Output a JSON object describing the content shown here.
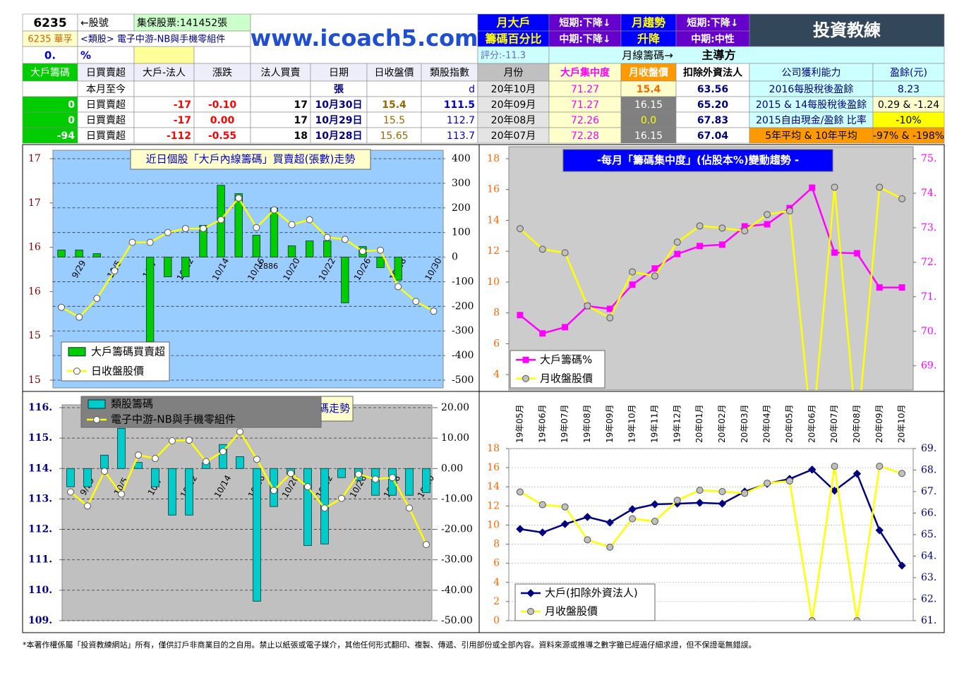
{
  "header": {
    "stock_code": "6235",
    "code_label": "←股號",
    "shares": "集保股票:141452張",
    "name": "6235 華孚",
    "sector": "<類股> 電子中游-NB與手機零組件",
    "pct": "0.",
    "pct_unit": "%",
    "site": "www.icoach5.com",
    "monthly_major": "月大戶",
    "chip_pct": "籌碼百分比",
    "short1": "短期:下降↓",
    "mid1": "中期:下降↓",
    "trend": "月趨勢",
    "updown": "升降",
    "short2": "短期:下降↓",
    "mid2": "中期:中性",
    "logo": "投資教練",
    "score": "評分:-11.3",
    "monthly_chip": "月線籌碼→",
    "leader": "主導方"
  },
  "table": {
    "columns": [
      "大戶籌碼",
      "日買賣超",
      "大戶-法人",
      "漲跌",
      "法人買賣",
      "日期",
      "日收盤價",
      "類股指數",
      "月份",
      "大戶集中度",
      "月收盤價",
      "扣除外資法人",
      "公司獲利能力",
      "盈餘(元)"
    ],
    "rows": [
      [
        null,
        "本月至今",
        null,
        null,
        null,
        "張",
        null,
        "d",
        "20年10月",
        "71.27",
        "15.4",
        "63.56",
        "2016每股稅後盈餘",
        "8.23"
      ],
      [
        "0",
        "日買賣超",
        "-17",
        "-0.10",
        "17",
        "10月30日",
        "15.4",
        "111.5",
        "20年09月",
        "71.27",
        "16.15",
        "65.20",
        "2015 & 14每股稅後盈餘",
        "0.29 & -1.24"
      ],
      [
        "0",
        "日買賣超",
        "-17",
        "0.00",
        "17",
        "10月29日",
        "15.5",
        "112.7",
        "20年08月",
        "72.26",
        "0.0",
        "67.83",
        "2015自由現金/盈餘 比率",
        "-10%"
      ],
      [
        "-94",
        "日買賣超",
        "-112",
        "-0.55",
        "18",
        "10月28日",
        "15.65",
        "113.7",
        "20年07月",
        "72.28",
        "16.15",
        "67.04",
        "5年平均 & 10年平均",
        "-97% & -198%"
      ]
    ]
  },
  "chart_data": [
    {
      "type": "combo",
      "title": "近日個股「大戶內線籌碼」買賣超(張數)走勢",
      "annotation": "2886",
      "categories": [
        null,
        "9/29",
        null,
        "10/5",
        null,
        "10/7",
        null,
        "10/12",
        null,
        "10/14",
        null,
        "10/16",
        null,
        "10/20",
        null,
        "10/22",
        null,
        "10/26",
        null,
        "10/28",
        null,
        "10/30"
      ],
      "ylim": [
        14.7,
        16.95
      ],
      "yticks": [
        {
          "value": 14.7,
          "label": "15"
        },
        {
          "value": 15.15,
          "label": "15"
        },
        {
          "value": 15.6,
          "label": "16"
        },
        {
          "value": 16.05,
          "label": "16"
        },
        {
          "value": 16.5,
          "label": "17"
        },
        {
          "value": 16.95,
          "label": "17"
        }
      ],
      "y2lim": [
        -500,
        400
      ],
      "y2ticks": [
        -500,
        -400,
        -300,
        -200,
        -100,
        0,
        100,
        200,
        300,
        400
      ],
      "grid": "y2",
      "series": [
        {
          "name": "大戶籌碼買賣超",
          "type": "bar",
          "axis": "y2",
          "color": "#00cc00",
          "values": [
            29,
            29,
            14,
            0,
            0,
            -344,
            -80,
            -80,
            129,
            292,
            258,
            89,
            200,
            46,
            66,
            66,
            -186,
            43,
            -43,
            -94,
            0,
            0
          ]
        },
        {
          "name": "日收盤股價",
          "type": "line",
          "color": "#ffff00",
          "marker": "circle",
          "marker_color": "#ffffff",
          "values": [
            15.44,
            15.34,
            15.53,
            15.81,
            16.1,
            16.1,
            16.2,
            16.24,
            16.24,
            16.33,
            16.55,
            16.25,
            16.43,
            16.28,
            16.33,
            16.15,
            16.13,
            16.01,
            16.02,
            15.65,
            15.5,
            15.4
          ]
        }
      ]
    },
    {
      "type": "line",
      "title": "-每月「籌碼集中度」(佔股本%)變動趨勢 -",
      "ylim": [
        3,
        18
      ],
      "yticks": [
        4,
        6,
        8,
        10,
        12,
        14,
        16,
        18
      ],
      "y2lim": [
        68.3,
        75
      ],
      "y2ticks": [
        {
          "value": 69,
          "label": "69."
        },
        {
          "value": 70,
          "label": "70."
        },
        {
          "value": 71,
          "label": "71."
        },
        {
          "value": 72,
          "label": "72."
        },
        {
          "value": 73,
          "label": "73."
        },
        {
          "value": 74,
          "label": "74."
        },
        {
          "value": 75,
          "label": "75."
        }
      ],
      "series": [
        {
          "name": "大戶籌碼%",
          "axis": "y2",
          "color": "#ff00ff",
          "marker": "square",
          "marker_color": "#ff00ff",
          "values": [
            70.47,
            69.94,
            70.12,
            70.73,
            70.65,
            71.35,
            71.82,
            72.24,
            72.47,
            72.51,
            73.04,
            73.1,
            73.57,
            74.16,
            72.28,
            72.26,
            71.27,
            71.27
          ]
        },
        {
          "name": "月收盤股價",
          "color": "#ffff00",
          "marker": "circle",
          "marker_color": "#c0c0c0",
          "values": [
            13.46,
            12.13,
            11.9,
            8.46,
            7.68,
            10.66,
            10.39,
            12.59,
            13.64,
            13.5,
            13.32,
            14.38,
            14.61,
            0,
            16.15,
            0,
            16.15,
            15.4
          ]
        }
      ]
    },
    {
      "type": "combo",
      "title": "類股籌碼走勢",
      "categories": [
        null,
        "9/29",
        null,
        "10/5",
        null,
        "10/7",
        null,
        "10/12",
        null,
        "10/14",
        null,
        "10/16",
        null,
        "10/20",
        null,
        "10/22",
        null,
        "10/26",
        null,
        "10/28",
        null,
        "10/30"
      ],
      "ylim": [
        109,
        116
      ],
      "yticks": [
        {
          "value": 109,
          "label": "109."
        },
        {
          "value": 110,
          "label": "110."
        },
        {
          "value": 111,
          "label": "111."
        },
        {
          "value": 112,
          "label": "112."
        },
        {
          "value": 113,
          "label": "113."
        },
        {
          "value": 114,
          "label": "114."
        },
        {
          "value": 115,
          "label": "115."
        },
        {
          "value": 116,
          "label": "116."
        }
      ],
      "y2lim": [
        -50,
        20
      ],
      "y2ticks": [
        {
          "value": -50,
          "label": "-50.00"
        },
        {
          "value": -40,
          "label": "-40.00"
        },
        {
          "value": -30,
          "label": "-30.00"
        },
        {
          "value": -20,
          "label": "-20.00"
        },
        {
          "value": -10,
          "label": "-10.00"
        },
        {
          "value": 0,
          "label": "0.00"
        },
        {
          "value": 10,
          "label": "10.00"
        },
        {
          "value": 20,
          "label": "20.00"
        }
      ],
      "grid": "y2",
      "series": [
        {
          "name": "類股籌碼",
          "type": "bar",
          "axis": "y2",
          "color": "#00cccc",
          "values": [
            -6,
            -6,
            4.4,
            13.2,
            2,
            -6,
            -15.3,
            -15.3,
            1.9,
            7.9,
            3.9,
            -43.6,
            -12.5,
            -1.9,
            -25.3,
            -24.8,
            -3,
            -3.9,
            -8.8,
            -8.8,
            -8.8,
            -7.9
          ]
        },
        {
          "name": "電子中游-NB與手機零組件",
          "type": "line",
          "color": "#ffff00",
          "marker": "circle",
          "marker_color": "#ffffff",
          "values": [
            113.23,
            112.77,
            113.91,
            113.16,
            114.44,
            114.33,
            114.91,
            114.93,
            114.23,
            114.56,
            115.21,
            114.3,
            113.28,
            113.84,
            113.4,
            112.7,
            113.02,
            113.81,
            113.65,
            113.7,
            112.7,
            111.5
          ]
        }
      ]
    },
    {
      "type": "line",
      "categories": [
        "19年05月",
        "19年06月",
        "19年07月",
        "19年08月",
        "19年09月",
        "19年10月",
        "19年11月",
        "19年12月",
        "20年01月",
        "20年02月",
        "20年03月",
        "20年04月",
        "20年05月",
        "20年06月",
        "20年07月",
        "20年08月",
        "20年09月",
        "20年10月"
      ],
      "ylim": [
        0,
        18
      ],
      "yticks": [
        0,
        2,
        4,
        6,
        8,
        10,
        12,
        14,
        16,
        18
      ],
      "y2lim": [
        61,
        69
      ],
      "y2ticks": [
        {
          "value": 61,
          "label": "61."
        },
        {
          "value": 62,
          "label": "62."
        },
        {
          "value": 63,
          "label": "63."
        },
        {
          "value": 64,
          "label": "64."
        },
        {
          "value": 65,
          "label": "65."
        },
        {
          "value": 66,
          "label": "66."
        },
        {
          "value": 67,
          "label": "67."
        },
        {
          "value": 68,
          "label": "68."
        },
        {
          "value": 69,
          "label": "69."
        }
      ],
      "grid": "y",
      "series": [
        {
          "name": "大戶(扣除外資法人)",
          "axis": "y2",
          "color": "#000080",
          "marker": "diamond",
          "marker_color": "#000080",
          "values": [
            65.26,
            65.1,
            65.49,
            65.82,
            65.56,
            66.18,
            66.41,
            66.44,
            66.48,
            66.44,
            67.0,
            67.36,
            67.59,
            68.02,
            67.04,
            67.83,
            65.2,
            63.56
          ]
        },
        {
          "name": "月收盤股價",
          "color": "#ffff00",
          "marker": "circle",
          "marker_color": "#c0c0c0",
          "values": [
            13.46,
            12.13,
            11.9,
            8.46,
            7.68,
            10.66,
            10.39,
            12.59,
            13.64,
            13.5,
            13.32,
            14.38,
            14.61,
            0,
            16.15,
            0,
            16.15,
            15.4
          ]
        }
      ]
    }
  ],
  "footer": "*本著作權係屬「投資教練網站」所有，僅供訂戶非商業目的之自用。禁止以紙張或電子媒介，其他任何形式翻印、複製、傳遞、引用部份或全部內容。資料來源或推導之數字雖已經過仔細求證，但不保證毫無錯誤。"
}
